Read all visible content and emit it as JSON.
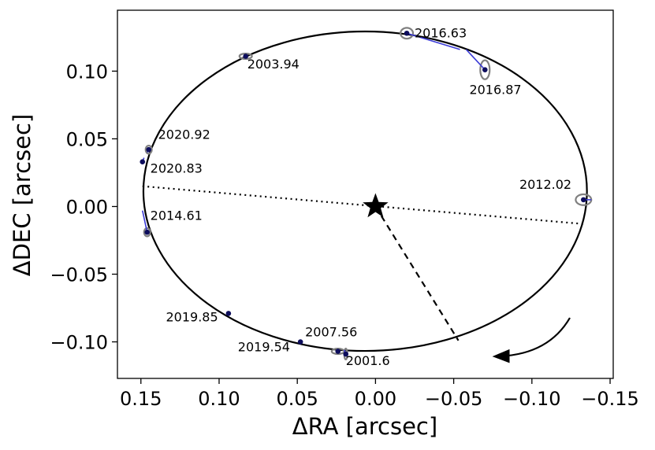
{
  "chart_data": {
    "type": "scatter",
    "title": "",
    "xlabel": "ΔRA [arcsec]",
    "ylabel": "ΔDEC [arcsec]",
    "xlim": [
      0.165,
      -0.152
    ],
    "ylim": [
      -0.127,
      0.145
    ],
    "x_inverted": true,
    "grid": false,
    "legend": "none",
    "xticks": [
      {
        "value": 0.15,
        "label": "0.15"
      },
      {
        "value": 0.1,
        "label": "0.10"
      },
      {
        "value": 0.05,
        "label": "0.05"
      },
      {
        "value": 0.0,
        "label": "0.00"
      },
      {
        "value": -0.05,
        "label": "−0.05"
      },
      {
        "value": -0.1,
        "label": "−0.10"
      },
      {
        "value": -0.15,
        "label": "−0.15"
      }
    ],
    "yticks": [
      {
        "value": 0.1,
        "label": "0.10"
      },
      {
        "value": 0.05,
        "label": "0.05"
      },
      {
        "value": 0.0,
        "label": "0.00"
      },
      {
        "value": -0.05,
        "label": "−0.05"
      },
      {
        "value": -0.1,
        "label": "−0.10"
      }
    ],
    "orbit": {
      "center": [
        0.0066,
        0.0113
      ],
      "semi_major": 0.1418,
      "semi_minor": 0.118,
      "rotation_deg": 0,
      "color": "#000000"
    },
    "primary_star": {
      "x": 0.0,
      "y": 0.0
    },
    "line_of_nodes": [
      [
        0.149,
        0.015
      ],
      [
        -0.134,
        -0.013
      ]
    ],
    "periastron_line": [
      [
        0.0,
        0.0
      ],
      [
        -0.053,
        -0.099
      ]
    ],
    "motion_direction": "counterclockwise",
    "series": [
      {
        "points": [
          {
            "epoch": "2001.6",
            "x": 0.019,
            "y": -0.109
          },
          {
            "epoch": "2003.94",
            "x": 0.083,
            "y": 0.111
          },
          {
            "epoch": "2007.56",
            "x": 0.048,
            "y": -0.1
          },
          {
            "epoch": "2012.02",
            "x": -0.133,
            "y": 0.005
          },
          {
            "epoch": "2014.61",
            "x": 0.146,
            "y": -0.019
          },
          {
            "epoch": "2016.63",
            "x": -0.02,
            "y": 0.128
          },
          {
            "epoch": "2016.87",
            "x": -0.07,
            "y": 0.101
          },
          {
            "epoch": "2019.54",
            "x": 0.024,
            "y": -0.107
          },
          {
            "epoch": "2019.85",
            "x": 0.094,
            "y": -0.079
          },
          {
            "epoch": "2020.83",
            "x": 0.149,
            "y": 0.033
          },
          {
            "epoch": "2020.92",
            "x": 0.145,
            "y": 0.042
          }
        ],
        "residual_lines": [
          {
            "from": [
              0.019,
              -0.109
            ],
            "to": [
              0.02,
              -0.106
            ]
          },
          {
            "from": [
              0.083,
              0.111
            ],
            "to": [
              0.082,
              0.111
            ]
          },
          {
            "from": [
              0.048,
              -0.1
            ],
            "to": [
              0.047,
              -0.1
            ]
          },
          {
            "from": [
              -0.133,
              0.005
            ],
            "to": [
              -0.138,
              0.005
            ]
          },
          {
            "from": [
              0.146,
              -0.019
            ],
            "to": [
              0.149,
              -0.003
            ]
          },
          {
            "from": [
              -0.02,
              0.128
            ],
            "to": [
              -0.054,
              0.116
            ]
          },
          {
            "from": [
              -0.07,
              0.101
            ],
            "to": [
              -0.058,
              0.116
            ]
          },
          {
            "from": [
              0.149,
              0.033
            ],
            "to": [
              0.148,
              0.036
            ]
          },
          {
            "from": [
              0.145,
              0.042
            ],
            "to": [
              0.146,
              0.04
            ]
          }
        ],
        "error_ellipses": [
          {
            "epoch": "2001.6",
            "rx": 0.001,
            "ry": 0.004
          },
          {
            "epoch": "2003.94",
            "rx": 0.004,
            "ry": 0.002
          },
          {
            "epoch": "2007.56",
            "rx": 0.001,
            "ry": 0.001
          },
          {
            "epoch": "2012.02",
            "rx": 0.005,
            "ry": 0.004
          },
          {
            "epoch": "2014.61",
            "rx": 0.002,
            "ry": 0.003
          },
          {
            "epoch": "2016.63",
            "rx": 0.004,
            "ry": 0.004
          },
          {
            "epoch": "2016.87",
            "rx": 0.003,
            "ry": 0.007
          },
          {
            "epoch": "2019.54",
            "rx": 0.004,
            "ry": 0.002
          },
          {
            "epoch": "2019.85",
            "rx": 0.001,
            "ry": 0.001
          },
          {
            "epoch": "2020.83",
            "rx": 0.001,
            "ry": 0.001
          },
          {
            "epoch": "2020.92",
            "rx": 0.002,
            "ry": 0.003
          }
        ]
      }
    ],
    "annotations": [
      {
        "text": "2016.63",
        "x": -0.025,
        "y": 0.125,
        "anchor": "start"
      },
      {
        "text": "2003.94",
        "x": 0.082,
        "y": 0.102,
        "anchor": "start"
      },
      {
        "text": "2016.87",
        "x": -0.06,
        "y": 0.083,
        "anchor": "start"
      },
      {
        "text": "2020.92",
        "x": 0.139,
        "y": 0.05,
        "anchor": "start"
      },
      {
        "text": "2020.83",
        "x": 0.144,
        "y": 0.025,
        "anchor": "start"
      },
      {
        "text": "2012.02",
        "x": -0.092,
        "y": 0.013,
        "anchor": "start"
      },
      {
        "text": "2014.61",
        "x": 0.144,
        "y": -0.01,
        "anchor": "start"
      },
      {
        "text": "2019.85",
        "x": 0.134,
        "y": -0.085,
        "anchor": "start"
      },
      {
        "text": "2007.56",
        "x": 0.045,
        "y": -0.096,
        "anchor": "start"
      },
      {
        "text": "2019.54",
        "x": 0.088,
        "y": -0.107,
        "anchor": "start"
      },
      {
        "text": "2001.6",
        "x": 0.019,
        "y": -0.117,
        "anchor": "start"
      }
    ]
  }
}
